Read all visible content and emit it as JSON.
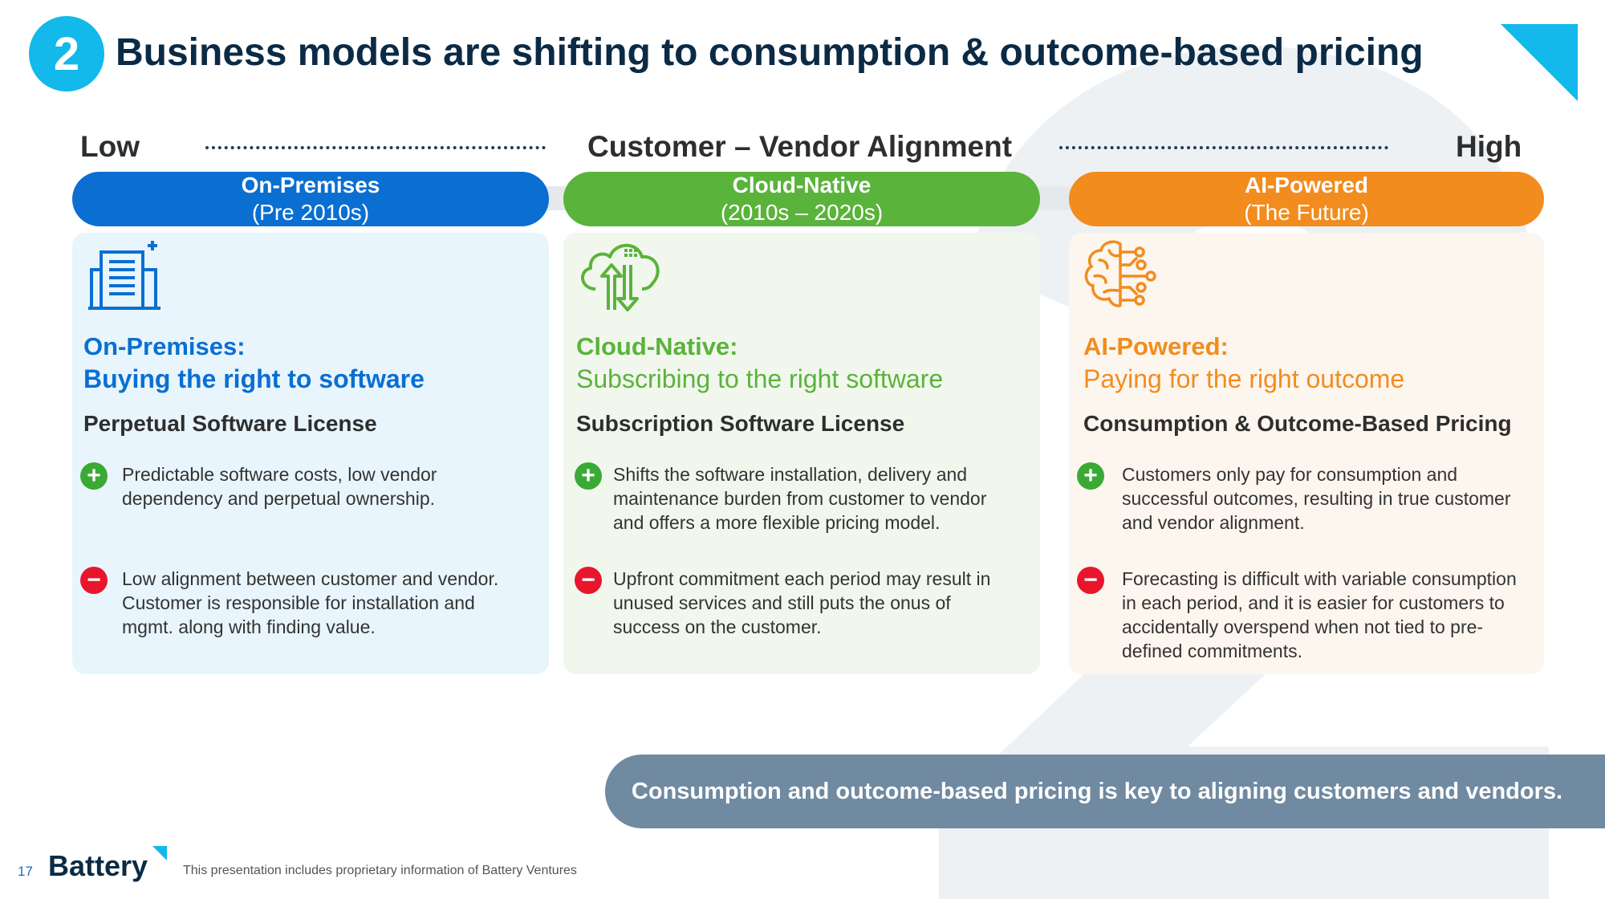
{
  "slide": {
    "number_badge": "2",
    "title": "Business models are shifting to consumption & outcome-based pricing"
  },
  "scale": {
    "low": "Low",
    "middle": "Customer – Vendor Alignment",
    "high": "High"
  },
  "stages": [
    {
      "pill_title": "On-Premises",
      "pill_period": "(Pre 2010s)",
      "icon": "office-building-icon",
      "heading": "On-Premises:",
      "subheading": "Buying the right to software",
      "license": "Perpetual Software License",
      "pro": "Predictable software costs, low vendor dependency and perpetual ownership.",
      "con": "Low alignment between customer and vendor. Customer is responsible for installation and mgmt. along with finding value.",
      "color": "#0a6fd1",
      "card_bg": "#e8f5fd"
    },
    {
      "pill_title": "Cloud-Native",
      "pill_period": "(2010s – 2020s)",
      "icon": "cloud-upload-download-icon",
      "heading": "Cloud-Native:",
      "subheading": "Subscribing to the right software",
      "license": "Subscription Software License",
      "pro": "Shifts the software installation, delivery and maintenance burden from customer to vendor and offers a more flexible pricing model.",
      "con": "Upfront commitment each period may result in unused services and still puts the onus of success on the customer.",
      "color": "#5ab33b",
      "card_bg": "#f2f7ee"
    },
    {
      "pill_title": "AI-Powered",
      "pill_period": "(The Future)",
      "icon": "ai-brain-icon",
      "heading": "AI-Powered:",
      "subheading": "Paying for the right outcome",
      "license": "Consumption & Outcome-Based Pricing",
      "pro": "Customers only pay for consumption and successful outcomes, resulting in true customer and vendor alignment.",
      "con": "Forecasting is difficult with variable consumption in each period, and it is easier for customers to accidentally overspend when not tied to pre-defined commitments.",
      "color": "#f28c1e",
      "card_bg": "#fdf6ee"
    }
  ],
  "banner": "Consumption and outcome-based pricing is key to aligning customers and vendors.",
  "footer": {
    "page_number": "17",
    "logo": "Battery",
    "note": "This presentation includes proprietary information of Battery Ventures"
  },
  "colors": {
    "accent_cyan": "#12b9ea",
    "title_navy": "#0b2a45",
    "banner_gray": "#6f8aa1",
    "plus_green": "#3aaa35",
    "minus_red": "#e8152c"
  }
}
